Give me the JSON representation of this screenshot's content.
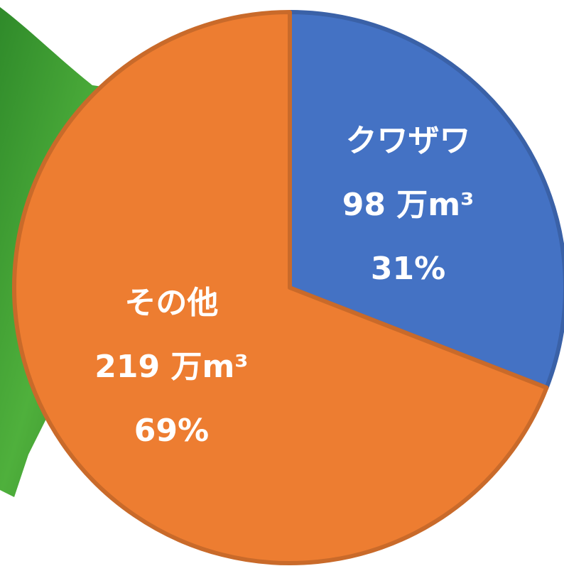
{
  "chart_data": {
    "type": "pie",
    "categories": [
      "クワザワ",
      "その他"
    ],
    "values": [
      98,
      219
    ],
    "value_labels": [
      "98 万m³",
      "219 万m³"
    ],
    "percent_labels": [
      "31%",
      "69%"
    ],
    "colors": [
      "#4472c4",
      "#ed7d31"
    ]
  }
}
